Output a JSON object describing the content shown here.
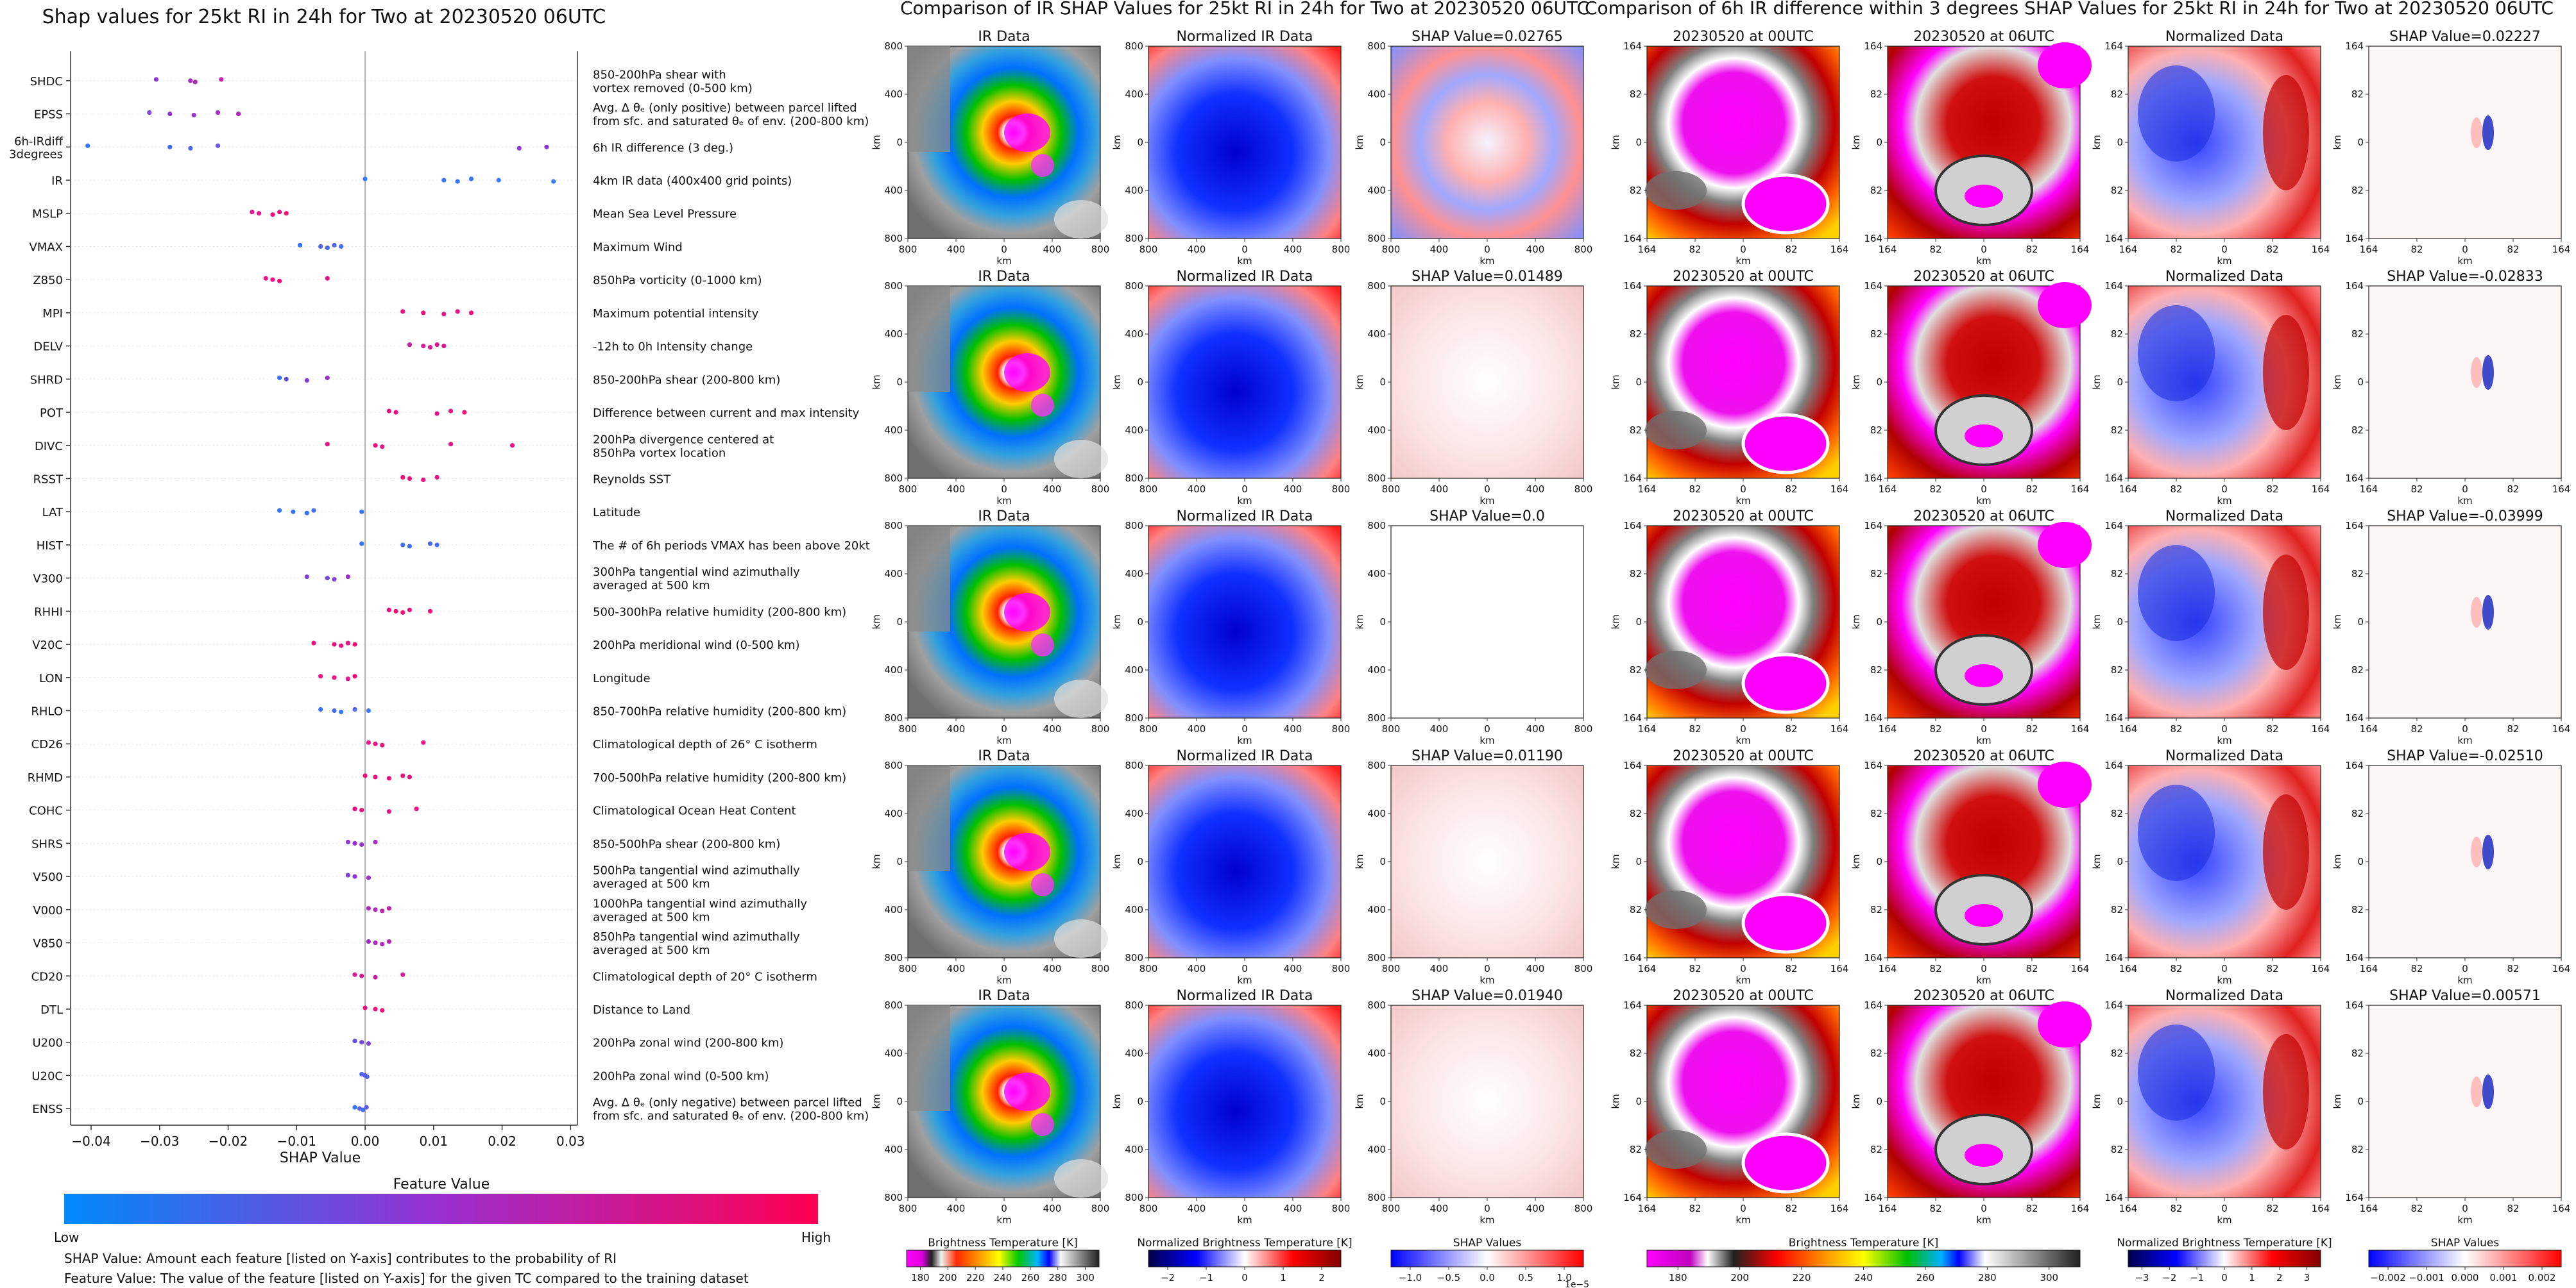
{
  "colors": {
    "shap_low": "#1e88ff",
    "shap_high": "#ff0a6e",
    "zero_line": "#999999"
  },
  "shap_plot": {
    "title": "Shap values for 25kt RI in 24h for Two at 20230520 06UTC",
    "xlabel": "SHAP Value",
    "colorbar_label": "Feature Value",
    "colorbar_low": "Low",
    "colorbar_high": "High",
    "footnote1": "SHAP Value: Amount each feature [listed on Y-axis] contributes to the probability of RI",
    "footnote2": "Feature Value: The value of the feature [listed on Y-axis] for the given TC compared to the training dataset"
  },
  "ir_panel": {
    "title": "Comparison of IR SHAP Values for 25kt RI in 24h for Two at 20230520 06UTC",
    "col_titles": [
      "IR Data",
      "Normalized IR Data"
    ],
    "shap_titles": [
      "SHAP Value=0.02765",
      "SHAP Value=0.01489",
      "SHAP Value=0.0",
      "SHAP Value=0.01190",
      "SHAP Value=0.01940"
    ],
    "ticks": [
      "800",
      "400",
      "0",
      "400",
      "800"
    ],
    "axis_unit": "km",
    "cbar_bt_label": "Brightness Temperature [K]",
    "cbar_bt_ticks": [
      "180",
      "200",
      "220",
      "240",
      "260",
      "280",
      "300"
    ],
    "cbar_norm_label": "Normalized Brightness Temperature [K]",
    "cbar_norm_ticks": [
      "−2",
      "−1",
      "0",
      "1",
      "2"
    ],
    "cbar_shap_label": "SHAP Values",
    "cbar_shap_ticks": [
      "−1.0",
      "−0.5",
      "0.0",
      "0.5",
      "1.0"
    ],
    "cbar_shap_exp": "1e−5"
  },
  "ird_panel": {
    "title": "Comparison of 6h IR difference within 3 degrees SHAP Values for 25kt RI in 24h for Two at 20230520 06UTC",
    "col_titles": [
      "20230520 at 00UTC",
      "20230520 at 06UTC",
      "Normalized Data"
    ],
    "shap_titles": [
      "SHAP Value=0.02227",
      "SHAP Value=-0.02833",
      "SHAP Value=-0.03999",
      "SHAP Value=-0.02510",
      "SHAP Value=0.00571"
    ],
    "ticks": [
      "164",
      "82",
      "0",
      "82",
      "164"
    ],
    "axis_unit": "km",
    "cbar_bt_label": "Brightness Temperature [K]",
    "cbar_bt_ticks": [
      "180",
      "200",
      "220",
      "240",
      "260",
      "280",
      "300"
    ],
    "cbar_norm_label": "Normalized Brightness Temperature [K]",
    "cbar_norm_ticks": [
      "−3",
      "−2",
      "−1",
      "0",
      "1",
      "2",
      "3"
    ],
    "cbar_shap_label": "SHAP Values",
    "cbar_shap_ticks": [
      "−0.002",
      "−0.001",
      "0.000",
      "0.001",
      "0.002"
    ]
  },
  "chart_data": {
    "type": "scatter",
    "title": "Shap values for 25kt RI in 24h for Two at 20230520 06UTC",
    "xlabel": "SHAP Value",
    "ylabel": "",
    "xlim": [
      -0.043,
      0.031
    ],
    "xticks": [
      -0.04,
      -0.03,
      -0.02,
      -0.01,
      0.0,
      0.01,
      0.02,
      0.03
    ],
    "xtick_labels": [
      "−0.04",
      "−0.03",
      "−0.02",
      "−0.01",
      "0.00",
      "0.01",
      "0.02",
      "0.03"
    ],
    "grid": false,
    "features": [
      {
        "name": "SHDC",
        "description": [
          "850-200hPa shear with",
          "vortex removed (0-500 km)"
        ],
        "points": [
          [
            -0.0305,
            0.45
          ],
          [
            -0.0255,
            0.55
          ],
          [
            -0.0248,
            0.6
          ],
          [
            -0.021,
            0.7
          ]
        ]
      },
      {
        "name": "EPSS",
        "description": [
          "Avg. Δ θₑ (only positive) between parcel lifted",
          "from sfc. and saturated θₑ of env. (200-800 km)"
        ],
        "points": [
          [
            -0.0315,
            0.4
          ],
          [
            -0.0285,
            0.45
          ],
          [
            -0.025,
            0.5
          ],
          [
            -0.0215,
            0.55
          ],
          [
            -0.0185,
            0.6
          ]
        ]
      },
      {
        "name": "6h-IRdiff\n3degrees",
        "description": [
          "6h IR difference (3 deg.)"
        ],
        "points": [
          [
            -0.0405,
            0.1
          ],
          [
            -0.0285,
            0.15
          ],
          [
            -0.0255,
            0.2
          ],
          [
            -0.0215,
            0.3
          ],
          [
            0.0265,
            0.45
          ],
          [
            0.0225,
            0.45
          ]
        ]
      },
      {
        "name": "IR",
        "description": [
          "4km IR data (400x400 grid points)"
        ],
        "points": [
          [
            0.0,
            0.1
          ],
          [
            0.0115,
            0.1
          ],
          [
            0.0135,
            0.1
          ],
          [
            0.0155,
            0.1
          ],
          [
            0.0195,
            0.1
          ],
          [
            0.0275,
            0.1
          ]
        ]
      },
      {
        "name": "MSLP",
        "description": [
          "Mean Sea Level Pressure"
        ],
        "points": [
          [
            -0.0165,
            0.8
          ],
          [
            -0.0155,
            0.85
          ],
          [
            -0.0135,
            0.9
          ],
          [
            -0.0125,
            0.9
          ],
          [
            -0.0115,
            0.95
          ]
        ]
      },
      {
        "name": "VMAX",
        "description": [
          "Maximum Wind"
        ],
        "points": [
          [
            -0.0095,
            0.1
          ],
          [
            -0.0065,
            0.2
          ],
          [
            -0.0055,
            0.15
          ],
          [
            -0.0045,
            0.2
          ],
          [
            -0.0035,
            0.15
          ]
        ]
      },
      {
        "name": "Z850",
        "description": [
          "850hPa vorticity (0-1000 km)"
        ],
        "points": [
          [
            -0.0145,
            0.9
          ],
          [
            -0.0135,
            0.9
          ],
          [
            -0.0125,
            0.95
          ],
          [
            -0.0055,
            0.85
          ]
        ]
      },
      {
        "name": "MPI",
        "description": [
          "Maximum potential intensity"
        ],
        "points": [
          [
            0.0055,
            0.9
          ],
          [
            0.0085,
            0.9
          ],
          [
            0.0115,
            0.85
          ],
          [
            0.0135,
            0.9
          ],
          [
            0.0155,
            0.95
          ]
        ]
      },
      {
        "name": "DELV",
        "description": [
          "-12h to 0h Intensity change"
        ],
        "points": [
          [
            0.0065,
            0.7
          ],
          [
            0.0085,
            0.75
          ],
          [
            0.0095,
            0.8
          ],
          [
            0.0105,
            0.85
          ],
          [
            0.0115,
            0.85
          ]
        ]
      },
      {
        "name": "SHRD",
        "description": [
          "850-200hPa shear (200-800 km)"
        ],
        "points": [
          [
            -0.0125,
            0.1
          ],
          [
            -0.0115,
            0.3
          ],
          [
            -0.0085,
            0.4
          ],
          [
            -0.0055,
            0.5
          ]
        ]
      },
      {
        "name": "POT",
        "description": [
          "Difference between current and max intensity"
        ],
        "points": [
          [
            0.0035,
            0.9
          ],
          [
            0.0045,
            0.9
          ],
          [
            0.0105,
            0.85
          ],
          [
            0.0125,
            0.9
          ],
          [
            0.0145,
            0.95
          ]
        ]
      },
      {
        "name": "DIVC",
        "description": [
          "200hPa divergence centered at",
          "850hPa vortex location"
        ],
        "points": [
          [
            -0.0055,
            0.9
          ],
          [
            0.0015,
            0.9
          ],
          [
            0.0025,
            0.85
          ],
          [
            0.0125,
            0.9
          ],
          [
            0.0215,
            0.9
          ]
        ]
      },
      {
        "name": "RSST",
        "description": [
          "Reynolds SST"
        ],
        "points": [
          [
            0.0055,
            0.95
          ],
          [
            0.0065,
            0.95
          ],
          [
            0.0085,
            0.9
          ],
          [
            0.0105,
            0.9
          ]
        ]
      },
      {
        "name": "LAT",
        "description": [
          "Latitude"
        ],
        "points": [
          [
            -0.0125,
            0.1
          ],
          [
            -0.0105,
            0.1
          ],
          [
            -0.0085,
            0.1
          ],
          [
            -0.0075,
            0.15
          ],
          [
            -0.0005,
            0.1
          ]
        ]
      },
      {
        "name": "HIST",
        "description": [
          "The # of 6h periods VMAX has been above 20kt"
        ],
        "points": [
          [
            -0.0005,
            0.1
          ],
          [
            0.0055,
            0.15
          ],
          [
            0.0065,
            0.15
          ],
          [
            0.0095,
            0.15
          ],
          [
            0.0105,
            0.15
          ]
        ]
      },
      {
        "name": "V300",
        "description": [
          "300hPa tangential wind azimuthally",
          "averaged at 500 km"
        ],
        "points": [
          [
            -0.0085,
            0.4
          ],
          [
            -0.0055,
            0.35
          ],
          [
            -0.0045,
            0.4
          ],
          [
            -0.0025,
            0.5
          ]
        ]
      },
      {
        "name": "RHHI",
        "description": [
          "500-300hPa relative humidity (200-800 km)"
        ],
        "points": [
          [
            0.0035,
            0.9
          ],
          [
            0.0045,
            0.95
          ],
          [
            0.0055,
            0.95
          ],
          [
            0.0065,
            0.9
          ],
          [
            0.0095,
            0.95
          ]
        ]
      },
      {
        "name": "V20C",
        "description": [
          "200hPa meridional wind (0-500 km)"
        ],
        "points": [
          [
            -0.0075,
            0.9
          ],
          [
            -0.0045,
            0.9
          ],
          [
            -0.0035,
            0.85
          ],
          [
            -0.0025,
            0.9
          ],
          [
            -0.0015,
            0.95
          ]
        ]
      },
      {
        "name": "LON",
        "description": [
          "Longitude"
        ],
        "points": [
          [
            -0.0065,
            0.9
          ],
          [
            -0.0045,
            0.9
          ],
          [
            -0.0025,
            0.85
          ],
          [
            -0.0015,
            0.95
          ]
        ]
      },
      {
        "name": "RHLO",
        "description": [
          "850-700hPa relative humidity (200-800 km)"
        ],
        "points": [
          [
            -0.0065,
            0.1
          ],
          [
            -0.0045,
            0.15
          ],
          [
            -0.0035,
            0.1
          ],
          [
            -0.0015,
            0.2
          ],
          [
            0.0005,
            0.1
          ]
        ]
      },
      {
        "name": "CD26",
        "description": [
          "Climatological depth of 26° C isotherm"
        ],
        "points": [
          [
            0.0005,
            0.9
          ],
          [
            0.0015,
            0.9
          ],
          [
            0.0025,
            0.9
          ],
          [
            0.0085,
            0.9
          ]
        ]
      },
      {
        "name": "RHMD",
        "description": [
          "700-500hPa relative humidity (200-800 km)"
        ],
        "points": [
          [
            0.0,
            0.95
          ],
          [
            0.0015,
            0.9
          ],
          [
            0.0035,
            0.9
          ],
          [
            0.0055,
            0.9
          ],
          [
            0.0065,
            0.9
          ]
        ]
      },
      {
        "name": "COHC",
        "description": [
          "Climatological Ocean Heat Content"
        ],
        "points": [
          [
            -0.0015,
            0.9
          ],
          [
            -0.0005,
            0.9
          ],
          [
            0.0035,
            0.85
          ],
          [
            0.0075,
            0.9
          ]
        ]
      },
      {
        "name": "SHRS",
        "description": [
          "850-500hPa shear (200-800 km)"
        ],
        "points": [
          [
            -0.0025,
            0.45
          ],
          [
            -0.0015,
            0.5
          ],
          [
            -0.0005,
            0.5
          ],
          [
            0.0015,
            0.55
          ]
        ]
      },
      {
        "name": "V500",
        "description": [
          "500hPa tangential wind azimuthally",
          "averaged at 500 km"
        ],
        "points": [
          [
            -0.0025,
            0.4
          ],
          [
            -0.0015,
            0.45
          ],
          [
            0.0005,
            0.5
          ]
        ]
      },
      {
        "name": "V000",
        "description": [
          "1000hPa tangential wind azimuthally",
          "averaged at 500 km"
        ],
        "points": [
          [
            0.0005,
            0.6
          ],
          [
            0.0015,
            0.6
          ],
          [
            0.0025,
            0.65
          ],
          [
            0.0035,
            0.7
          ]
        ]
      },
      {
        "name": "V850",
        "description": [
          "850hPa tangential wind azimuthally",
          "averaged at 500 km"
        ],
        "points": [
          [
            0.0005,
            0.55
          ],
          [
            0.0015,
            0.6
          ],
          [
            0.0025,
            0.6
          ],
          [
            0.0035,
            0.65
          ]
        ]
      },
      {
        "name": "CD20",
        "description": [
          "Climatological depth of 20° C isotherm"
        ],
        "points": [
          [
            -0.0015,
            0.8
          ],
          [
            -0.0005,
            0.8
          ],
          [
            0.0015,
            0.75
          ],
          [
            0.0055,
            0.8
          ]
        ]
      },
      {
        "name": "DTL",
        "description": [
          "Distance to Land"
        ],
        "points": [
          [
            0.0,
            0.9
          ],
          [
            0.0015,
            0.9
          ],
          [
            0.0025,
            0.9
          ]
        ]
      },
      {
        "name": "U200",
        "description": [
          "200hPa zonal wind (200-800 km)"
        ],
        "points": [
          [
            -0.0015,
            0.3
          ],
          [
            -0.0005,
            0.35
          ],
          [
            0.0005,
            0.4
          ]
        ]
      },
      {
        "name": "U20C",
        "description": [
          "200hPa zonal wind (0-500 km)"
        ],
        "points": [
          [
            -0.0005,
            0.2
          ],
          [
            0.0,
            0.25
          ],
          [
            0.0003,
            0.2
          ]
        ]
      },
      {
        "name": "ENSS",
        "description": [
          "Avg. Δ θₑ (only negative) between parcel lifted",
          "from sfc. and saturated θₑ of env. (200-800 km)"
        ],
        "points": [
          [
            -0.0015,
            0.1
          ],
          [
            -0.0008,
            0.2
          ],
          [
            -0.0003,
            0.15
          ],
          [
            0.0002,
            0.25
          ]
        ]
      }
    ]
  }
}
